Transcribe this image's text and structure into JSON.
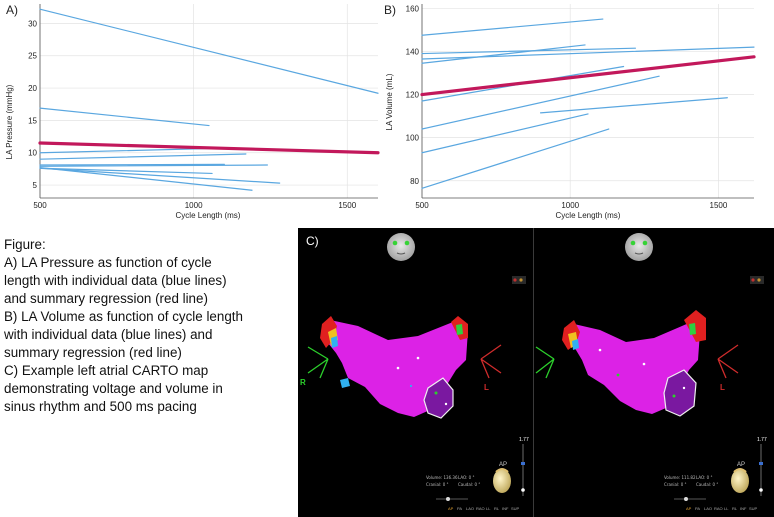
{
  "chart_data": [
    {
      "panel": "A)",
      "type": "line",
      "title": "LA Pressure as function of cycle length",
      "xlabel": "Cycle Length (ms)",
      "ylabel": "LA Pressure (mmHg)",
      "xlim": [
        500,
        1600
      ],
      "ylim": [
        3,
        33
      ],
      "xticks": [
        500,
        1000,
        1500
      ],
      "yticks": [
        5,
        10,
        15,
        20,
        25,
        30
      ],
      "grid": true,
      "series": [
        {
          "name": "individual",
          "x": [
            500,
            1600
          ],
          "y": [
            32.2,
            19.2
          ]
        },
        {
          "name": "individual",
          "x": [
            500,
            1050
          ],
          "y": [
            16.9,
            14.2
          ]
        },
        {
          "name": "individual",
          "x": [
            500,
            1100
          ],
          "y": [
            10.0,
            10.7
          ]
        },
        {
          "name": "individual",
          "x": [
            500,
            1170
          ],
          "y": [
            9.0,
            9.8
          ]
        },
        {
          "name": "individual",
          "x": [
            500,
            1100
          ],
          "y": [
            8.1,
            8.2
          ]
        },
        {
          "name": "individual",
          "x": [
            500,
            1060
          ],
          "y": [
            7.6,
            6.8
          ]
        },
        {
          "name": "individual",
          "x": [
            500,
            1280
          ],
          "y": [
            7.6,
            5.3
          ]
        },
        {
          "name": "individual",
          "x": [
            500,
            1190
          ],
          "y": [
            7.7,
            4.2
          ]
        },
        {
          "name": "individual",
          "x": [
            500,
            1240
          ],
          "y": [
            7.9,
            8.1
          ]
        },
        {
          "name": "summary regression",
          "x": [
            500,
            1600
          ],
          "y": [
            11.5,
            10.0
          ]
        }
      ]
    },
    {
      "panel": "B)",
      "type": "line",
      "title": "LA Volume as function of cycle length",
      "xlabel": "Cycle Length (ms)",
      "ylabel": "LA Volume (mL)",
      "xlim": [
        500,
        1620
      ],
      "ylim": [
        72,
        162
      ],
      "xticks": [
        500,
        1000,
        1500
      ],
      "yticks": [
        80,
        100,
        120,
        140,
        160
      ],
      "grid": true,
      "series": [
        {
          "name": "individual",
          "x": [
            500,
            1110
          ],
          "y": [
            147.5,
            155
          ]
        },
        {
          "name": "individual",
          "x": [
            500,
            1220
          ],
          "y": [
            139,
            141.5
          ]
        },
        {
          "name": "individual",
          "x": [
            500,
            1620
          ],
          "y": [
            136.5,
            142
          ]
        },
        {
          "name": "individual",
          "x": [
            500,
            1050
          ],
          "y": [
            134.5,
            143
          ]
        },
        {
          "name": "individual",
          "x": [
            500,
            1180
          ],
          "y": [
            117,
            133
          ]
        },
        {
          "name": "individual",
          "x": [
            500,
            1300
          ],
          "y": [
            104,
            128.5
          ]
        },
        {
          "name": "individual",
          "x": [
            900,
            1530
          ],
          "y": [
            111.5,
            118.5
          ]
        },
        {
          "name": "individual",
          "x": [
            500,
            1060
          ],
          "y": [
            93,
            111
          ]
        },
        {
          "name": "individual",
          "x": [
            500,
            1130
          ],
          "y": [
            76.5,
            104
          ]
        },
        {
          "name": "summary regression",
          "x": [
            500,
            1620
          ],
          "y": [
            120,
            137.5
          ]
        }
      ]
    }
  ],
  "caption": {
    "heading": "Figure:",
    "lines": [
      "A) LA Pressure as function of cycle",
      "length with individual data (blue lines)",
      "and summary regression (red line)",
      "B) LA Volume as function of cycle length",
      "with individual data (blue lines) and",
      "summary regression (red line)",
      "C) Example left atrial CARTO map",
      "demonstrating voltage and volume in",
      "sinus rhythm and 500 ms pacing"
    ]
  },
  "carto": {
    "panel": "C)",
    "left_marker": "R",
    "right_marker": "L",
    "scale_value": "1.77",
    "orientation_label": "AP",
    "left_readout": {
      "volume": "Volume: 136.36",
      "cranial": "Cranial: 0 °",
      "lao": "LAO: 0 °",
      "caudal": "Caudal: 0 °"
    },
    "right_readout": {
      "volume": "Volume: 111.82",
      "cranial": "Cranial: 0 °",
      "lao": "LAO: 0 °",
      "caudal": "Caudal: 0 °"
    },
    "view_tabs": [
      "AP",
      "PA",
      "LAO",
      "RAO",
      "LL",
      "RL",
      "INF",
      "SUP"
    ],
    "colors": {
      "individual": "#5aa7e0",
      "regression": "#c2185b",
      "magenta": "#e020e8"
    }
  }
}
